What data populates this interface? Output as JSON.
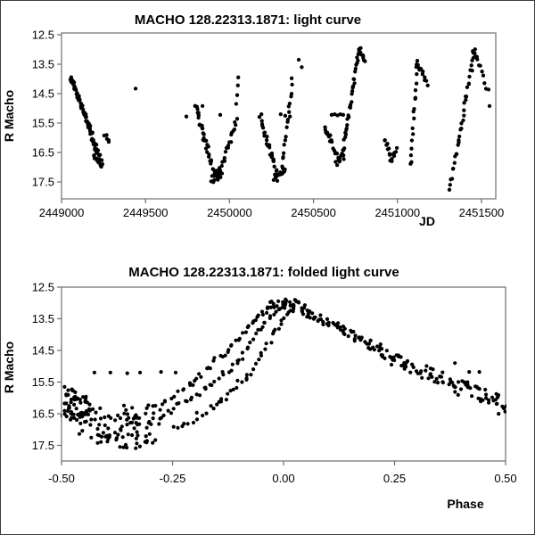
{
  "page": {
    "background": "#ffffff",
    "border_color": "#3c3c3c",
    "text_color": "#000000",
    "frame_color": "#6e6e6e"
  },
  "chart_data": [
    {
      "type": "scatter",
      "title": "MACHO 128.22313.1871: light curve",
      "xlabel": "JD",
      "ylabel": "R Macho",
      "x_tick_values": [
        2449000,
        2449500,
        2450000,
        2450500,
        2451000,
        2451500
      ],
      "x_tick_labels": [
        "2449000",
        "2449500",
        "2450000",
        "2450500",
        "2451000",
        "2451500"
      ],
      "y_tick_values": [
        12.5,
        13.5,
        14.5,
        15.5,
        16.5,
        17.5
      ],
      "y_tick_labels": [
        "12.5",
        "13.5",
        "14.5",
        "15.5",
        "16.5",
        "17.5"
      ],
      "xlim": [
        2449000,
        2451585
      ],
      "ylim": [
        12.5,
        18.08
      ],
      "y_inverted": true,
      "grid": false,
      "legend": false,
      "marker": {
        "color": "#000000",
        "radius": 2.15
      },
      "series": [
        {
          "name": "R Macho vs JD",
          "segments": [
            [
              2449055,
              13.95,
              2449172,
              15.7,
              48,
              6,
              0.07
            ],
            [
              2449172,
              15.7,
              2449216,
              16.55,
              22,
              8,
              0.12
            ],
            [
              2449196,
              16.5,
              2449240,
              16.92,
              16,
              10,
              0.15
            ],
            [
              2449258,
              15.92,
              2449286,
              16.12,
              5,
              6,
              0.08
            ],
            [
              2449800,
              14.95,
              2449912,
              17.32,
              34,
              7,
              0.12
            ],
            [
              2449893,
              17.42,
              2449950,
              17.18,
              16,
              10,
              0.17
            ],
            [
              2449935,
              17.3,
              2450042,
              15.4,
              22,
              6,
              0.12
            ],
            [
              2450184,
              15.4,
              2450290,
              17.3,
              26,
              6,
              0.13
            ],
            [
              2450268,
              17.45,
              2450330,
              17.1,
              14,
              8,
              0.16
            ],
            [
              2450305,
              17.35,
              2450372,
              14.2,
              18,
              4,
              0.12
            ],
            [
              2450563,
              15.6,
              2450650,
              16.75,
              17,
              7,
              0.12
            ],
            [
              2450638,
              16.85,
              2450680,
              16.6,
              10,
              8,
              0.12
            ],
            [
              2450672,
              16.6,
              2450773,
              12.95,
              34,
              5,
              0.1
            ],
            [
              2450773,
              12.95,
              2450808,
              13.42,
              9,
              4,
              0.06
            ],
            [
              2450925,
              16.05,
              2450962,
              16.7,
              9,
              6,
              0.1
            ],
            [
              2450962,
              16.7,
              2450996,
              16.38,
              7,
              5,
              0.1
            ],
            [
              2451078,
              16.95,
              2451117,
              13.45,
              17,
              4,
              0.1
            ],
            [
              2451117,
              13.45,
              2451170,
              14.05,
              10,
              5,
              0.08
            ],
            [
              2451312,
              17.72,
              2451458,
              13.1,
              34,
              5,
              0.12
            ],
            [
              2451450,
              13.05,
              2451472,
              13.3,
              6,
              4,
              0.06
            ],
            [
              2451472,
              13.3,
              2451540,
              14.42,
              8,
              4,
              0.08
            ]
          ],
          "points": [
            [
              2449441,
              14.33
            ],
            [
              2449743,
              15.28
            ],
            [
              2449839,
              14.92
            ],
            [
              2449945,
              15.22
            ],
            [
              2450040,
              14.85
            ],
            [
              2450046,
              14.55
            ],
            [
              2450050,
              14.22
            ],
            [
              2450052,
              13.95
            ],
            [
              2450370,
              13.98
            ],
            [
              2450412,
              13.35
            ],
            [
              2450430,
              13.6
            ],
            [
              2450190,
              15.2
            ],
            [
              2450305,
              15.2
            ],
            [
              2450332,
              15.25
            ],
            [
              2450360,
              15.28
            ],
            [
              2450608,
              15.22
            ],
            [
              2450626,
              15.2
            ],
            [
              2450643,
              15.24
            ],
            [
              2450660,
              15.2
            ],
            [
              2450677,
              15.22
            ],
            [
              2451180,
              14.22
            ],
            [
              2451548,
              14.92
            ]
          ]
        }
      ]
    },
    {
      "type": "scatter",
      "title": "MACHO 128.22313.1871: folded light curve",
      "xlabel": "Phase",
      "ylabel": "R Macho",
      "x_tick_values": [
        -0.5,
        -0.25,
        0.0,
        0.25,
        0.5
      ],
      "x_tick_labels": [
        "-0.50",
        "-0.25",
        "0.00",
        "0.25",
        "0.50"
      ],
      "y_tick_values": [
        12.5,
        13.5,
        14.5,
        15.5,
        16.5,
        17.5
      ],
      "y_tick_labels": [
        "12.5",
        "13.5",
        "14.5",
        "15.5",
        "16.5",
        "17.5"
      ],
      "xlim": [
        -0.5,
        0.5
      ],
      "ylim": [
        12.5,
        17.99
      ],
      "y_inverted": true,
      "grid": false,
      "legend": false,
      "marker": {
        "color": "#000000",
        "radius": 2.1
      },
      "series": [
        {
          "name": "R Macho vs Phase",
          "segments": [
            [
              -0.5,
              16.05,
              -0.42,
              16.35,
              40,
              0.012,
              0.38
            ],
            [
              -0.498,
              16.45,
              -0.44,
              16.6,
              18,
              0.01,
              0.25
            ],
            [
              -0.5,
              15.78,
              -0.46,
              15.95,
              8,
              0.008,
              0.15
            ],
            [
              -0.45,
              16.8,
              -0.3,
              16.95,
              45,
              0.015,
              0.45
            ],
            [
              -0.42,
              17.35,
              -0.3,
              17.42,
              25,
              0.012,
              0.22
            ],
            [
              -0.36,
              16.45,
              -0.27,
              16.65,
              20,
              0.01,
              0.3
            ],
            [
              -0.3,
              16.3,
              -0.2,
              15.5,
              14,
              0.006,
              0.1
            ],
            [
              -0.2,
              15.5,
              -0.12,
              14.4,
              14,
              0.005,
              0.1
            ],
            [
              -0.12,
              14.4,
              -0.06,
              13.5,
              12,
              0.004,
              0.09
            ],
            [
              -0.06,
              13.5,
              -0.025,
              13.08,
              8,
              0.004,
              0.07
            ],
            [
              -0.27,
              16.55,
              -0.18,
              15.75,
              13,
              0.006,
              0.1
            ],
            [
              -0.18,
              15.75,
              -0.1,
              14.8,
              13,
              0.005,
              0.1
            ],
            [
              -0.1,
              14.8,
              -0.04,
              13.6,
              12,
              0.004,
              0.09
            ],
            [
              -0.04,
              13.6,
              0.0,
              13.1,
              8,
              0.004,
              0.07
            ],
            [
              -0.25,
              17.0,
              -0.15,
              16.2,
              13,
              0.006,
              0.12
            ],
            [
              -0.15,
              16.2,
              -0.08,
              15.3,
              12,
              0.005,
              0.1
            ],
            [
              -0.08,
              15.3,
              -0.02,
              13.9,
              12,
              0.004,
              0.1
            ],
            [
              -0.02,
              13.9,
              0.02,
              13.15,
              8,
              0.004,
              0.08
            ],
            [
              -0.03,
              13.05,
              0.05,
              13.18,
              26,
              0.01,
              0.12
            ],
            [
              -0.005,
              12.92,
              0.04,
              12.96,
              10,
              0.008,
              0.05
            ],
            [
              0.05,
              13.3,
              0.12,
              13.72,
              25,
              0.008,
              0.12
            ],
            [
              0.12,
              13.72,
              0.2,
              14.35,
              28,
              0.008,
              0.15
            ],
            [
              0.2,
              14.35,
              0.28,
              14.95,
              28,
              0.008,
              0.18
            ],
            [
              0.28,
              14.95,
              0.36,
              15.42,
              26,
              0.008,
              0.22
            ],
            [
              0.36,
              15.42,
              0.44,
              15.9,
              26,
              0.008,
              0.28
            ],
            [
              0.44,
              15.9,
              0.5,
              16.3,
              22,
              0.008,
              0.33
            ]
          ],
          "points": [
            [
              -0.426,
              15.2
            ],
            [
              -0.39,
              15.2
            ],
            [
              -0.352,
              15.22
            ],
            [
              -0.323,
              15.2
            ],
            [
              -0.276,
              15.18
            ],
            [
              -0.243,
              15.2
            ],
            [
              0.243,
              14.95
            ],
            [
              0.386,
              14.9
            ],
            [
              0.418,
              15.18
            ],
            [
              0.441,
              15.18
            ]
          ]
        }
      ]
    }
  ]
}
